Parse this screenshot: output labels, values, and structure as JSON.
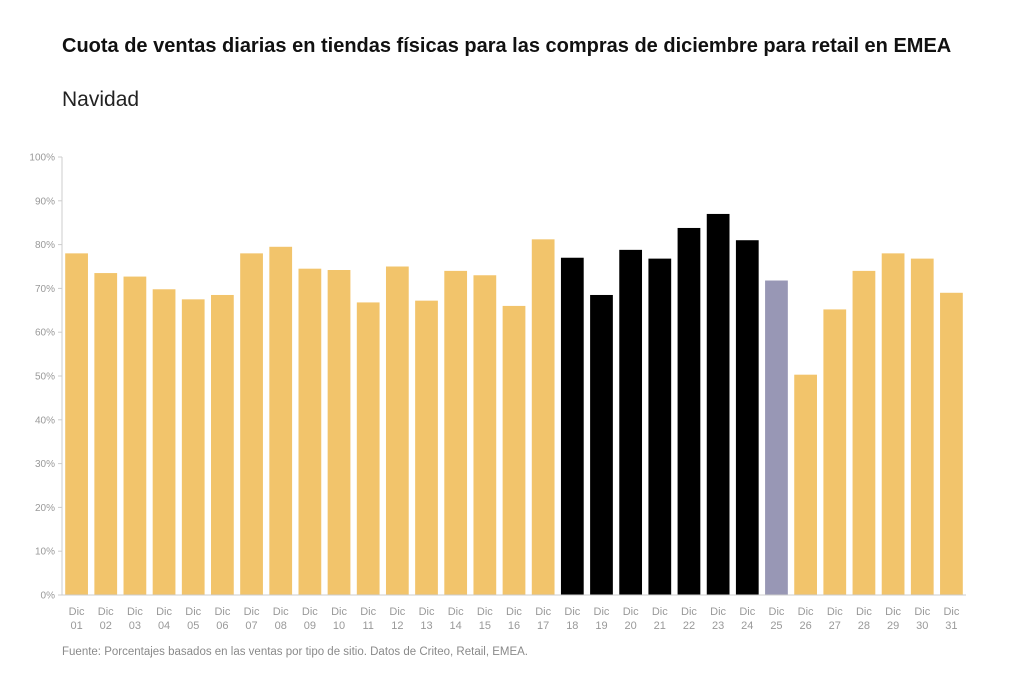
{
  "title": "Cuota de ventas diarias en tiendas físicas para las compras de diciembre para retail en EMEA",
  "subtitle": "Navidad",
  "source": "Fuente: Porcentajes basados en las ventas por tipo de sitio. Datos de Criteo, Retail, EMEA.",
  "colors": {
    "default": "#F2C46B",
    "highlight": "#000000",
    "christmas": "#9897B5",
    "axis": "#cccccc"
  },
  "chart_data": {
    "type": "bar",
    "title": "Cuota de ventas diarias en tiendas físicas para las compras de diciembre para retail en EMEA",
    "subtitle": "Navidad",
    "ylim": [
      0,
      100
    ],
    "yticks": [
      "0%",
      "10%",
      "20%",
      "30%",
      "40%",
      "50%",
      "60%",
      "70%",
      "80%",
      "90%",
      "100%"
    ],
    "grid": false,
    "categories": [
      {
        "line1": "Dic",
        "line2": "01"
      },
      {
        "line1": "Dic",
        "line2": "02"
      },
      {
        "line1": "Dic",
        "line2": "03"
      },
      {
        "line1": "Dic",
        "line2": "04"
      },
      {
        "line1": "Dic",
        "line2": "05"
      },
      {
        "line1": "Dic",
        "line2": "06"
      },
      {
        "line1": "Dic",
        "line2": "07"
      },
      {
        "line1": "Dic",
        "line2": "08"
      },
      {
        "line1": "Dic",
        "line2": "09"
      },
      {
        "line1": "Dic",
        "line2": "10"
      },
      {
        "line1": "Dic",
        "line2": "11"
      },
      {
        "line1": "Dic",
        "line2": "12"
      },
      {
        "line1": "Dic",
        "line2": "13"
      },
      {
        "line1": "Dic",
        "line2": "14"
      },
      {
        "line1": "Dic",
        "line2": "15"
      },
      {
        "line1": "Dic",
        "line2": "16"
      },
      {
        "line1": "Dic",
        "line2": "17"
      },
      {
        "line1": "Dic",
        "line2": "18"
      },
      {
        "line1": "Dic",
        "line2": "19"
      },
      {
        "line1": "Dic",
        "line2": "20"
      },
      {
        "line1": "Dic",
        "line2": "21"
      },
      {
        "line1": "Dic",
        "line2": "22"
      },
      {
        "line1": "Dic",
        "line2": "23"
      },
      {
        "line1": "Dic",
        "line2": "24"
      },
      {
        "line1": "Dic",
        "line2": "25"
      },
      {
        "line1": "Dic",
        "line2": "26"
      },
      {
        "line1": "Dic",
        "line2": "27"
      },
      {
        "line1": "Dic",
        "line2": "28"
      },
      {
        "line1": "Dic",
        "line2": "29"
      },
      {
        "line1": "Dic",
        "line2": "30"
      },
      {
        "line1": "Dic",
        "line2": "31"
      }
    ],
    "values": [
      78,
      73.5,
      72.7,
      69.8,
      67.5,
      68.5,
      78,
      79.5,
      74.5,
      74.2,
      66.8,
      75,
      67.2,
      74,
      73,
      66,
      81.2,
      77,
      68.5,
      78.8,
      76.8,
      83.8,
      87,
      81,
      71.8,
      50.3,
      65.2,
      74,
      78,
      76.8,
      69
    ],
    "bar_colors": [
      "default",
      "default",
      "default",
      "default",
      "default",
      "default",
      "default",
      "default",
      "default",
      "default",
      "default",
      "default",
      "default",
      "default",
      "default",
      "default",
      "default",
      "highlight",
      "highlight",
      "highlight",
      "highlight",
      "highlight",
      "highlight",
      "highlight",
      "christmas",
      "default",
      "default",
      "default",
      "default",
      "default",
      "default"
    ]
  }
}
